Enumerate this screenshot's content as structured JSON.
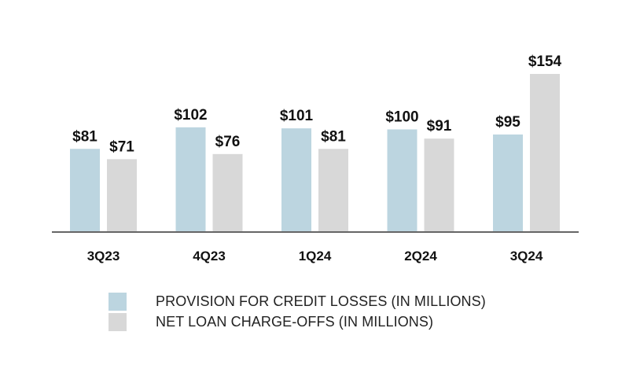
{
  "chart_data": {
    "type": "bar",
    "categories": [
      "3Q23",
      "4Q23",
      "1Q24",
      "2Q24",
      "3Q24"
    ],
    "series": [
      {
        "name": "PROVISION FOR CREDIT LOSSES (IN MILLIONS)",
        "values": [
          81,
          102,
          101,
          100,
          95
        ],
        "labels": [
          "$81",
          "$102",
          "$101",
          "$100",
          "$95"
        ],
        "color": "#bcd5e0"
      },
      {
        "name": "NET LOAN CHARGE-OFFS (IN MILLIONS)",
        "values": [
          71,
          76,
          81,
          91,
          154
        ],
        "labels": [
          "$71",
          "$76",
          "$81",
          "$91",
          "$154"
        ],
        "color": "#d8d8d8"
      }
    ],
    "title": "",
    "xlabel": "",
    "ylabel": "",
    "ylim": [
      0,
      154
    ],
    "grid": false,
    "legend": "bottom",
    "axis_color": "#666666"
  }
}
